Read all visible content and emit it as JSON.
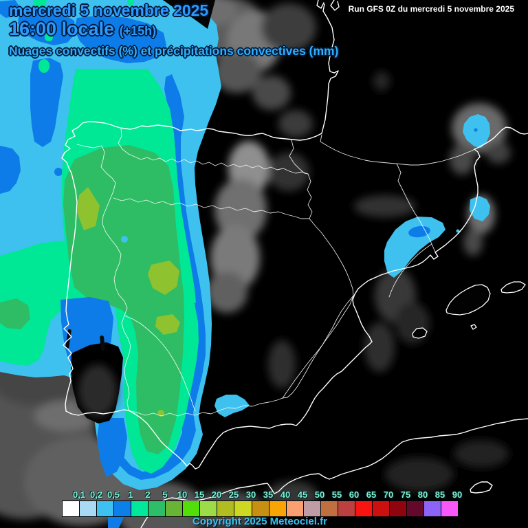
{
  "header": {
    "date": "mercredi 5 novembre 2025",
    "time": "16:00 locale",
    "offset": "(+15h)",
    "subtitle": "Nuages convectifs (%) et précipitations convectives (mm)"
  },
  "run_info": "Run GFS 0Z du mercredi 5 novembre 2025",
  "copyright": "Copyright 2025 Meteociel.fr",
  "legend": {
    "values": [
      "0,1",
      "0,2",
      "0,5",
      "1",
      "2",
      "5",
      "10",
      "15",
      "20",
      "25",
      "30",
      "35",
      "40",
      "45",
      "50",
      "55",
      "60",
      "65",
      "70",
      "75",
      "80",
      "85",
      "90"
    ],
    "colors": [
      "#ffffff",
      "#a8d9f5",
      "#3ec1f0",
      "#0d7fe8",
      "#00e89c",
      "#2ebd68",
      "#68b434",
      "#52de08",
      "#9cdc48",
      "#b0bc20",
      "#ccd822",
      "#c89012",
      "#f8a404",
      "#f8a070",
      "#c09ca4",
      "#c07040",
      "#bc4040",
      "#f81410",
      "#cc1010",
      "#900410",
      "#64082c",
      "#8c64f8",
      "#f858f8"
    ]
  },
  "ui_colors": {
    "hdrblue": "#2d9aff",
    "subblue": "#2fb0ff",
    "outline": "#001a38",
    "legendtxt": "#7ff2d0",
    "copytxt": "#38c6ea"
  },
  "map": {
    "colors": {
      "bg": "#000000",
      "coast": "#ffffff",
      "cyan": "#3ec1ee",
      "blue": "#0d7ce8",
      "glight": "#00e796",
      "green": "#2ebd64",
      "olive": "#8fc22f",
      "cloud": "#6a6a6a"
    }
  }
}
